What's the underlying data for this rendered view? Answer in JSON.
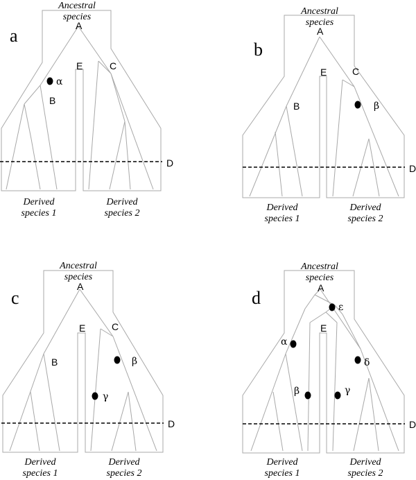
{
  "panels": [
    {
      "letter": "a",
      "ancestral": [
        "Ancestral",
        "species"
      ],
      "nodes": {
        "A": "A",
        "B": "B",
        "C": "C",
        "D": "D",
        "E": "E"
      },
      "derived1": [
        "Derived",
        "species 1"
      ],
      "derived2": [
        "Derived",
        "species 2"
      ],
      "events": [
        "α"
      ]
    },
    {
      "letter": "b",
      "ancestral": [
        "Ancestral",
        "species"
      ],
      "nodes": {
        "A": "A",
        "B": "B",
        "C": "C",
        "D": "D",
        "E": "E"
      },
      "derived1": [
        "Derived",
        "species 1"
      ],
      "derived2": [
        "Derived",
        "species 2"
      ],
      "events": [
        "β"
      ]
    },
    {
      "letter": "c",
      "ancestral": [
        "Ancestral",
        "species"
      ],
      "nodes": {
        "A": "A",
        "B": "B",
        "C": "C",
        "D": "D",
        "E": "E"
      },
      "derived1": [
        "Derived",
        "species 1"
      ],
      "derived2": [
        "Derived",
        "species 2"
      ],
      "events": [
        "β",
        "γ"
      ]
    },
    {
      "letter": "d",
      "ancestral": [
        "Ancestral",
        "species"
      ],
      "nodes": {
        "A": "A",
        "D": "D",
        "E": "E"
      },
      "derived1": [
        "Derived",
        "species 1"
      ],
      "derived2": [
        "Derived",
        "species 2"
      ],
      "events": [
        "ε",
        "α",
        "δ",
        "β",
        "γ"
      ]
    }
  ]
}
